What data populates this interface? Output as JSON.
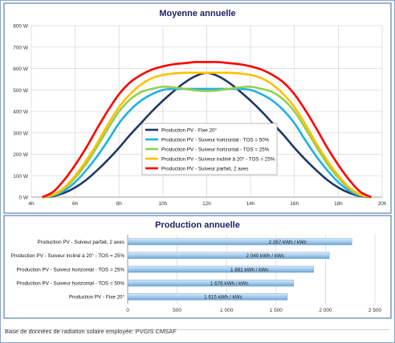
{
  "chart_data": [
    {
      "type": "line",
      "title": "Moyenne annuelle",
      "x_ticks": [
        "4h",
        "6h",
        "8h",
        "10h",
        "12h",
        "14h",
        "16h",
        "18h",
        "20h"
      ],
      "xlim": [
        4,
        20
      ],
      "y_ticks": [
        "0 W",
        "100 W",
        "200 W",
        "300 W",
        "400 W",
        "500 W",
        "600 W",
        "700 W",
        "800 W"
      ],
      "ylim": [
        0,
        800
      ],
      "grid": true,
      "legend": "center",
      "series": [
        {
          "name": "Production PV - Fixe 20°",
          "color": "#1f3864",
          "x": [
            4.5,
            5,
            5.5,
            6,
            6.5,
            7,
            7.5,
            8,
            8.5,
            9,
            9.5,
            10,
            10.5,
            11,
            11.5,
            12,
            12.5,
            13,
            13.5,
            14,
            14.5,
            15,
            15.5,
            16,
            16.5,
            17,
            17.5,
            18,
            18.5,
            19,
            19.5
          ],
          "y": [
            0,
            5,
            20,
            45,
            80,
            125,
            175,
            230,
            290,
            345,
            400,
            450,
            495,
            535,
            565,
            580,
            565,
            535,
            495,
            450,
            400,
            345,
            290,
            230,
            175,
            125,
            80,
            45,
            20,
            5,
            0
          ]
        },
        {
          "name": "Production PV - Suiveur horizontal - TOS = 50%",
          "color": "#1fb0e8",
          "x": [
            4.5,
            5,
            5.5,
            6,
            6.5,
            7,
            7.5,
            8,
            8.5,
            9,
            9.5,
            10,
            10.5,
            11,
            11.5,
            12,
            12.5,
            13,
            13.5,
            14,
            14.5,
            15,
            15.5,
            16,
            16.5,
            17,
            17.5,
            18,
            18.5,
            19,
            19.5
          ],
          "y": [
            0,
            8,
            30,
            70,
            125,
            190,
            265,
            345,
            405,
            450,
            480,
            500,
            505,
            505,
            505,
            505,
            505,
            505,
            505,
            500,
            480,
            450,
            405,
            345,
            265,
            190,
            125,
            70,
            30,
            8,
            0
          ]
        },
        {
          "name": "Production PV - Suiveur horizontal - TOS = 25%",
          "color": "#92d050",
          "x": [
            4.5,
            5,
            5.5,
            6,
            6.5,
            7,
            7.5,
            8,
            8.5,
            9,
            9.5,
            10,
            10.5,
            11,
            11.5,
            12,
            12.5,
            13,
            13.5,
            14,
            14.5,
            15,
            15.5,
            16,
            16.5,
            17,
            17.5,
            18,
            18.5,
            19,
            19.5
          ],
          "y": [
            0,
            10,
            40,
            90,
            155,
            235,
            320,
            400,
            455,
            490,
            505,
            515,
            512,
            505,
            498,
            495,
            498,
            505,
            512,
            515,
            505,
            490,
            455,
            400,
            320,
            235,
            155,
            90,
            40,
            10,
            0
          ]
        },
        {
          "name": "Production PV - Suiveur incliné à 20° - TOS = 25%",
          "color": "#ffc000",
          "x": [
            4.5,
            5,
            5.5,
            6,
            6.5,
            7,
            7.5,
            8,
            8.5,
            9,
            9.5,
            10,
            10.5,
            11,
            11.5,
            12,
            12.5,
            13,
            13.5,
            14,
            14.5,
            15,
            15.5,
            16,
            16.5,
            17,
            17.5,
            18,
            18.5,
            19,
            19.5
          ],
          "y": [
            0,
            12,
            45,
            100,
            170,
            250,
            340,
            420,
            480,
            525,
            555,
            570,
            577,
            580,
            580,
            580,
            580,
            580,
            577,
            570,
            555,
            525,
            480,
            420,
            340,
            250,
            170,
            100,
            45,
            12,
            0
          ]
        },
        {
          "name": "Production PV - Suiveur parfait, 2 axes",
          "color": "#ff0000",
          "x": [
            4.5,
            5,
            5.5,
            6,
            6.5,
            7,
            7.5,
            8,
            8.5,
            9,
            9.5,
            10,
            10.5,
            11,
            11.5,
            12,
            12.5,
            13,
            13.5,
            14,
            14.5,
            15,
            15.5,
            16,
            16.5,
            17,
            17.5,
            18,
            18.5,
            19,
            19.5
          ],
          "y": [
            0,
            25,
            80,
            150,
            230,
            320,
            405,
            480,
            535,
            570,
            595,
            610,
            620,
            625,
            630,
            630,
            630,
            625,
            620,
            610,
            595,
            570,
            535,
            480,
            405,
            320,
            230,
            150,
            80,
            25,
            0
          ]
        }
      ]
    },
    {
      "type": "bar",
      "orientation": "horizontal",
      "title": "Production annuelle",
      "categories": [
        "Production PV - Suiveur parfait, 2 axes",
        "Production PV - Suiveur incliné à 20° - TOS = 25%",
        "Production PV - Suiveur horizontal - TOS = 25%",
        "Production PV - Suiveur horizontal - TOS = 50%",
        "Production PV - Fixe 20°"
      ],
      "values": [
        2267,
        2040,
        1881,
        1678,
        1615
      ],
      "data_labels": [
        "2 267 kWh / kWc",
        "2 040 kWh / kWc",
        "1 881 kWh / kWc",
        "1 678 kWh / kWc",
        "1 615 kWh / kWc"
      ],
      "x_ticks": [
        "0",
        "500",
        "1 000",
        "1 500",
        "2 000",
        "2 500"
      ],
      "xlim": [
        0,
        2500
      ],
      "grid": true
    }
  ],
  "footer": "Base de données de radiation solaire employée: PVGIS CMSAF",
  "colors": {
    "border": "#8aa6c8",
    "bar": "#9ec6ea",
    "grid": "#d9d9d9"
  }
}
